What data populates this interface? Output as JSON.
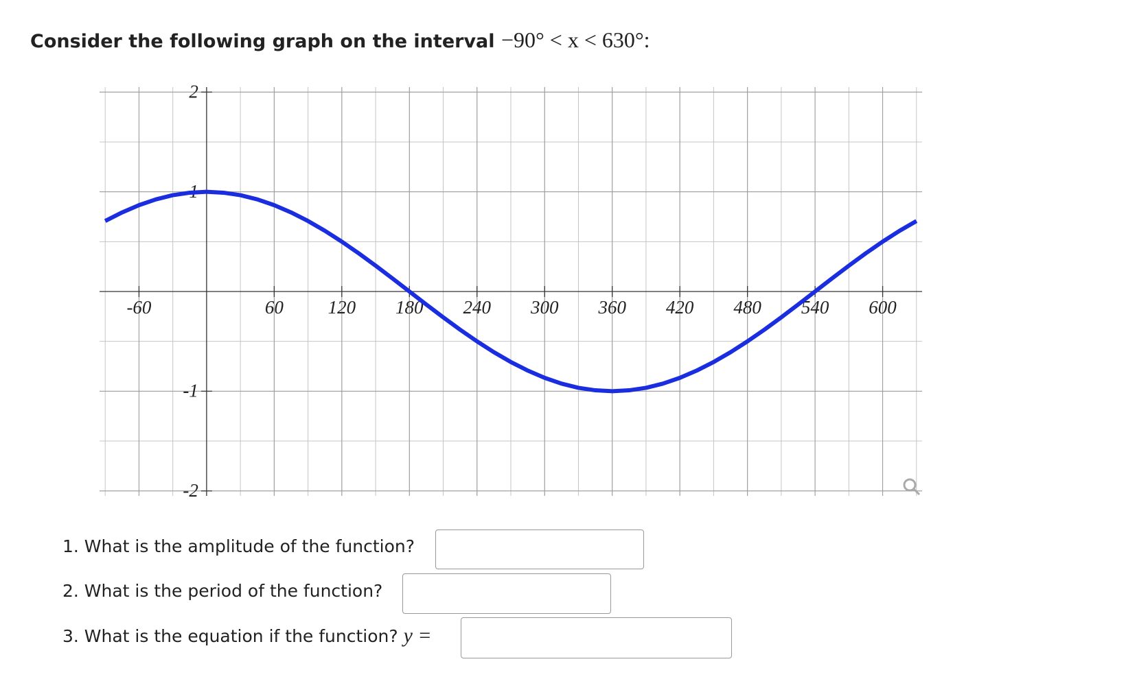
{
  "header": {
    "text": "Consider the following graph on the interval",
    "math": "−90° < x < 630°:"
  },
  "chart_data": {
    "type": "line",
    "x": [
      -90,
      -75,
      -60,
      -45,
      -30,
      -15,
      0,
      15,
      30,
      45,
      60,
      75,
      90,
      105,
      120,
      135,
      150,
      165,
      180,
      195,
      210,
      225,
      240,
      255,
      270,
      285,
      300,
      315,
      330,
      345,
      360,
      375,
      390,
      405,
      420,
      435,
      450,
      465,
      480,
      495,
      510,
      525,
      540,
      555,
      570,
      585,
      600,
      615,
      630
    ],
    "values": [
      0.707,
      0.793,
      0.866,
      0.924,
      0.966,
      0.991,
      1,
      0.991,
      0.966,
      0.924,
      0.866,
      0.793,
      0.707,
      0.609,
      0.5,
      0.383,
      0.259,
      0.131,
      0,
      -0.131,
      -0.259,
      -0.383,
      -0.5,
      -0.609,
      -0.707,
      -0.793,
      -0.866,
      -0.924,
      -0.966,
      -0.991,
      -1,
      -0.991,
      -0.966,
      -0.924,
      -0.866,
      -0.793,
      -0.707,
      -0.609,
      -0.5,
      -0.383,
      -0.259,
      -0.131,
      0,
      0.131,
      0.259,
      0.383,
      0.5,
      0.609,
      0.707
    ],
    "color": "#1a2ee0",
    "xlim": [
      -95,
      635
    ],
    "ylim": [
      -2.05,
      2.05
    ],
    "xticks": [
      -60,
      60,
      120,
      180,
      240,
      300,
      360,
      420,
      480,
      540,
      600
    ],
    "yticks": [
      2,
      1,
      -1,
      -2
    ],
    "grid": true
  },
  "questions": [
    {
      "text": "1. What is the amplitude of the function?"
    },
    {
      "text": "2. What is the period of the function?"
    },
    {
      "text": "3. What is the equation if the function?",
      "math": "y ="
    }
  ]
}
